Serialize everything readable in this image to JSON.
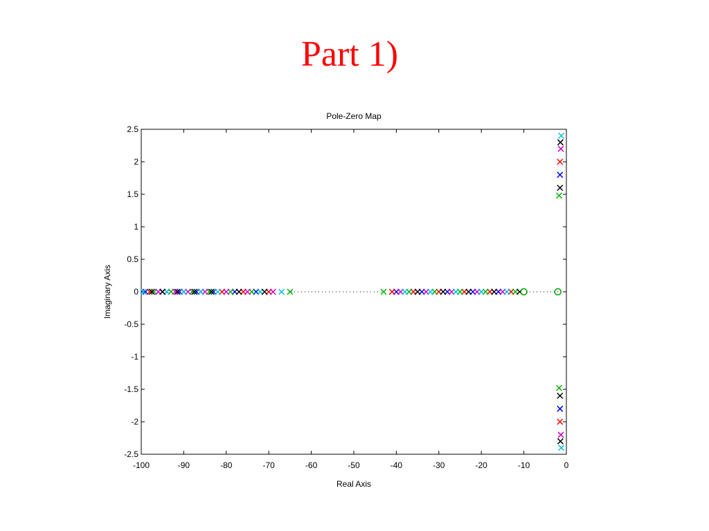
{
  "slide_title": "Part 1)",
  "chart_data": {
    "type": "scatter",
    "title": "Pole-Zero Map",
    "x_label": "Real Axis",
    "y_label": "Imaginary Axis",
    "xlim": [
      -100,
      0
    ],
    "ylim": [
      -2.5,
      2.5
    ],
    "xticks": [
      -100,
      -90,
      -80,
      -70,
      -60,
      -50,
      -40,
      -30,
      -20,
      -10,
      0
    ],
    "yticks": [
      -2.5,
      -2,
      -1.5,
      -1,
      -0.5,
      0,
      0.5,
      1,
      1.5,
      2,
      2.5
    ],
    "series": [
      {
        "color": "#0000ff",
        "marker": "x",
        "x": [
          -99,
          -95,
          -91,
          -87,
          -83,
          -78,
          -73,
          -40,
          -34,
          -28,
          -22,
          -16,
          -1.5,
          -1.5
        ],
        "y": [
          0,
          0,
          0,
          0,
          0,
          0,
          0,
          0,
          0,
          0,
          0,
          0,
          1.8,
          -1.8
        ]
      },
      {
        "color": "#ff0000",
        "marker": "x",
        "x": [
          -98,
          -94,
          -90,
          -86,
          -81,
          -76,
          -70,
          -41,
          -36,
          -30,
          -24,
          -18,
          -13,
          -1.5,
          -1.5
        ],
        "y": [
          0,
          0,
          0,
          0,
          0,
          0,
          0,
          0,
          0,
          0,
          0,
          0,
          0,
          2,
          -2
        ]
      },
      {
        "color": "#00b000",
        "marker": "x",
        "x": [
          -97,
          -93,
          -88,
          -84,
          -79,
          -74,
          -65,
          -43,
          -37,
          -31,
          -25,
          -19,
          -12,
          -1.7,
          -1.7
        ],
        "y": [
          0,
          0,
          0,
          0,
          0,
          0,
          0,
          0,
          0,
          0,
          0,
          0,
          0,
          1.48,
          -1.48
        ]
      },
      {
        "color": "#cc00cc",
        "marker": "x",
        "x": [
          -96,
          -92,
          -89,
          -85,
          -80,
          -75,
          -69,
          -39,
          -33,
          -27,
          -21,
          -15,
          -1.3,
          -1.3
        ],
        "y": [
          0,
          0,
          0,
          0,
          0,
          0,
          0,
          0,
          0,
          0,
          0,
          0,
          2.2,
          -2.2
        ]
      },
      {
        "color": "#00c0e0",
        "marker": "x",
        "x": [
          -99.5,
          -94,
          -90,
          -86,
          -82,
          -72,
          -67,
          -38,
          -32,
          -26,
          -20,
          -14,
          -1.2,
          -1.2
        ],
        "y": [
          0,
          0,
          0,
          0,
          0,
          0,
          0,
          0,
          0,
          0,
          0,
          0,
          2.4,
          -2.4
        ]
      },
      {
        "color": "#000000",
        "marker": "x",
        "x": [
          -97.5,
          -95,
          -91.5,
          -87.5,
          -83.5,
          -77,
          -71,
          -35,
          -29,
          -23,
          -17,
          -11,
          -1.5,
          -1.5,
          -1.4,
          -1.4
        ],
        "y": [
          0,
          0,
          0,
          0,
          0,
          0,
          0,
          0,
          0,
          0,
          0,
          0,
          1.6,
          -1.6,
          2.3,
          -2.3
        ]
      },
      {
        "color": "#00a000",
        "marker": "o",
        "x": [
          -10,
          -2
        ],
        "y": [
          0,
          0
        ]
      }
    ]
  }
}
